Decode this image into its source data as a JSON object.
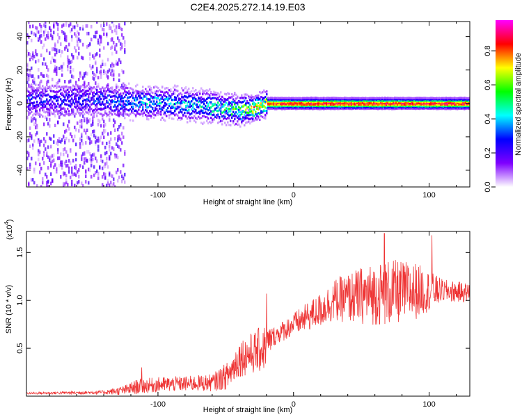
{
  "figure_title": "C2E4.2025.272.14.19.E03",
  "chart_data": [
    {
      "type": "heatmap",
      "xlabel": "Height of straight line (km)",
      "ylabel": "Frequency (Hz)",
      "xlim": [
        -197,
        130
      ],
      "ylim": [
        -50,
        49
      ],
      "x_ticks": [
        -100,
        0,
        100
      ],
      "x_tick_labels": [
        "-100",
        "0",
        "100"
      ],
      "y_ticks": [
        -40,
        -20,
        0,
        20,
        40
      ],
      "y_tick_labels": [
        "-40",
        "-20",
        "0",
        "20",
        "40"
      ],
      "colorbar": {
        "label": "Normalized spectral amplitude",
        "range": [
          0,
          0.98
        ],
        "ticks": [
          0,
          0.2,
          0.4,
          0.6,
          0.8
        ],
        "tick_labels": [
          "0.0",
          "0.2",
          "0.4",
          "0.6",
          "0.8"
        ],
        "colors": [
          "#ffffff",
          "#7f00ff",
          "#0000ff",
          "#00ffff",
          "#00ff00",
          "#ffff00",
          "#ff0000",
          "#ff00ff"
        ]
      },
      "ridge": {
        "description": "dominant spectral ridge near 0 Hz",
        "points": [
          {
            "x": -150,
            "y": 2,
            "amplitude": 0.3
          },
          {
            "x": -120,
            "y": 1,
            "amplitude": 0.4
          },
          {
            "x": -90,
            "y": 0,
            "amplitude": 0.45
          },
          {
            "x": -60,
            "y": -2,
            "amplitude": 0.5
          },
          {
            "x": -40,
            "y": -4,
            "amplitude": 0.6
          },
          {
            "x": -30,
            "y": -3,
            "amplitude": 0.75
          },
          {
            "x": -20,
            "y": 0,
            "amplitude": 0.9
          },
          {
            "x": 0,
            "y": 0,
            "amplitude": 0.95
          },
          {
            "x": 50,
            "y": 0,
            "amplitude": 0.95
          },
          {
            "x": 100,
            "y": 0,
            "amplitude": 0.95
          },
          {
            "x": 130,
            "y": 0,
            "amplitude": 0.95
          }
        ],
        "noise_region_xmax": -125
      }
    },
    {
      "type": "line",
      "xlabel": "Height of straight line (km)",
      "ylabel": "SNR (10 * v/v)",
      "y_multiplier": "(x10",
      "y_multiplier_exp": "4",
      "y_multiplier_close": ")",
      "xlim": [
        -197,
        130
      ],
      "ylim": [
        0,
        1.72
      ],
      "x_ticks": [
        -100,
        0,
        100
      ],
      "x_tick_labels": [
        "-100",
        "0",
        "100"
      ],
      "y_ticks": [
        0.5,
        1.0,
        1.5
      ],
      "y_tick_labels": [
        "0.5",
        "1.0",
        "1.5"
      ],
      "line_color": "#ee3333",
      "series": [
        {
          "name": "SNR",
          "envelope": [
            {
              "x": -197,
              "mean": 0.03,
              "spread": 0.01
            },
            {
              "x": -140,
              "mean": 0.04,
              "spread": 0.02
            },
            {
              "x": -125,
              "mean": 0.06,
              "spread": 0.05
            },
            {
              "x": -115,
              "mean": 0.1,
              "spread": 0.08
            },
            {
              "x": -100,
              "mean": 0.12,
              "spread": 0.08
            },
            {
              "x": -80,
              "mean": 0.13,
              "spread": 0.08
            },
            {
              "x": -60,
              "mean": 0.14,
              "spread": 0.09
            },
            {
              "x": -48,
              "mean": 0.22,
              "spread": 0.15
            },
            {
              "x": -40,
              "mean": 0.4,
              "spread": 0.2
            },
            {
              "x": -30,
              "mean": 0.45,
              "spread": 0.22
            },
            {
              "x": -22,
              "mean": 0.5,
              "spread": 0.25
            },
            {
              "x": -15,
              "mean": 0.62,
              "spread": 0.1
            },
            {
              "x": 0,
              "mean": 0.75,
              "spread": 0.12
            },
            {
              "x": 20,
              "mean": 0.9,
              "spread": 0.18
            },
            {
              "x": 30,
              "mean": 1.0,
              "spread": 0.22
            },
            {
              "x": 50,
              "mean": 1.05,
              "spread": 0.3
            },
            {
              "x": 70,
              "mean": 1.08,
              "spread": 0.35
            },
            {
              "x": 90,
              "mean": 1.1,
              "spread": 0.3
            },
            {
              "x": 110,
              "mean": 1.1,
              "spread": 0.12
            },
            {
              "x": 130,
              "mean": 1.08,
              "spread": 0.1
            }
          ],
          "peaks": [
            {
              "x": -112,
              "y": 0.3
            },
            {
              "x": -20,
              "y": 1.07
            },
            {
              "x": 67,
              "y": 1.7
            },
            {
              "x": 102,
              "y": 1.68
            }
          ]
        }
      ]
    }
  ]
}
